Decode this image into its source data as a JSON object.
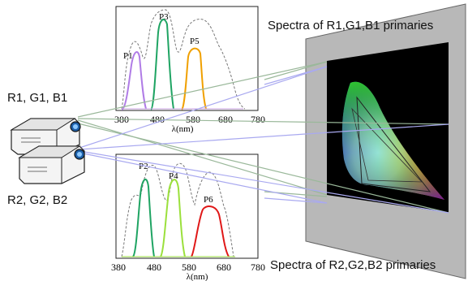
{
  "labels": {
    "top_caption": "Spectra of R1,G1,B1 primaries",
    "bottom_caption": "Spectra of R2,G2,B2 primaries",
    "projector1": "R1, G1, B1",
    "projector2": "R2, G2, B2"
  },
  "top_plot": {
    "ticks": [
      "380",
      "480",
      "580",
      "680",
      "780"
    ],
    "xlabel_symbol": "λ",
    "xlabel_unit": "(nm)",
    "peaks": [
      "P1",
      "P3",
      "P5"
    ]
  },
  "bottom_plot": {
    "ticks": [
      "380",
      "480",
      "580",
      "680",
      "780"
    ],
    "xlabel_symbol": "λ",
    "xlabel_unit": "(nm)",
    "peaks": [
      "P2",
      "P4",
      "P6"
    ]
  },
  "colors": {
    "purple": "#b07ce6",
    "green": "#1fa463",
    "orange": "#f0a000",
    "light_green": "#9be03c",
    "red": "#e01818",
    "dashed": "#777777",
    "projector_line_green": "#9ab89a",
    "projector_line_blue": "#a9a9f0"
  }
}
